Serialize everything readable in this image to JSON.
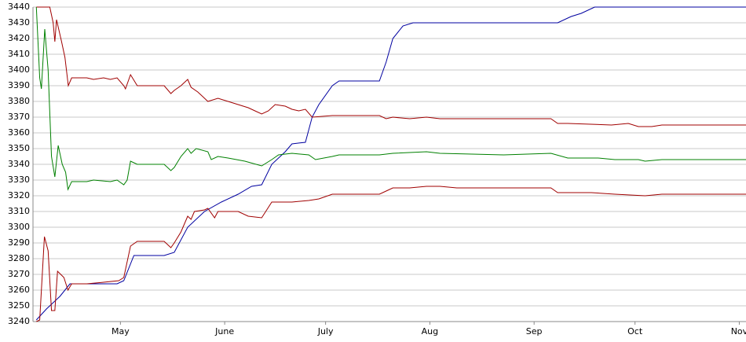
{
  "chart_data": {
    "type": "line",
    "xlim": [
      95,
      307
    ],
    "xticks": [
      {
        "value": 121,
        "label": "May"
      },
      {
        "value": 152,
        "label": "June"
      },
      {
        "value": 182,
        "label": "July"
      },
      {
        "value": 213,
        "label": "Aug"
      },
      {
        "value": 244,
        "label": "Sep"
      },
      {
        "value": 274,
        "label": "Oct"
      },
      {
        "value": 305,
        "label": "Nov"
      }
    ],
    "ylim": [
      3240,
      3440
    ],
    "yticks": [
      3240,
      3250,
      3260,
      3270,
      3280,
      3290,
      3300,
      3310,
      3320,
      3330,
      3340,
      3350,
      3360,
      3370,
      3380,
      3390,
      3400,
      3410,
      3420,
      3430,
      3440
    ],
    "grid": true,
    "series": [
      {
        "color": "#0000a0",
        "x": [
          96,
          99,
          103,
          106,
          120,
          122,
          125,
          134,
          137,
          141,
          146,
          151,
          156,
          160,
          163,
          166,
          170,
          172,
          176,
          178,
          180,
          184,
          186,
          198,
          200,
          202,
          205,
          208,
          251,
          255,
          258,
          262,
          307
        ],
        "values": [
          3241,
          3248,
          3256,
          3264,
          3264,
          3266,
          3282,
          3282,
          3284,
          3300,
          3310,
          3316,
          3321,
          3326,
          3327,
          3340,
          3348,
          3353,
          3354,
          3370,
          3378,
          3390,
          3393,
          3393,
          3405,
          3420,
          3428,
          3430,
          3430,
          3434,
          3436,
          3440,
          3440
        ]
      },
      {
        "color": "#a00000",
        "x": [
          96,
          100,
          101,
          101.5,
          102,
          103.5,
          104.5,
          105.5,
          106.5,
          111,
          113,
          116,
          118,
          120,
          122,
          122.5,
          124,
          126,
          134,
          136,
          137,
          139,
          141,
          142,
          144,
          147,
          150,
          153,
          156,
          159,
          161,
          163,
          165,
          167,
          170,
          172,
          174,
          176,
          178,
          184,
          198,
          200,
          202,
          207,
          212,
          216,
          228,
          244,
          249,
          251,
          254,
          267,
          272,
          275,
          279,
          282,
          307
        ],
        "values": [
          3440,
          3440,
          3430,
          3418,
          3432,
          3418,
          3408,
          3390,
          3395,
          3395,
          3394,
          3395,
          3394,
          3395,
          3390,
          3388,
          3397,
          3390,
          3390,
          3385,
          3387,
          3390,
          3394,
          3389,
          3386,
          3380,
          3382,
          3380,
          3378,
          3376,
          3374,
          3372,
          3374,
          3378,
          3377,
          3375,
          3374,
          3375,
          3370,
          3371,
          3371,
          3369,
          3370,
          3369,
          3370,
          3369,
          3369,
          3369,
          3369,
          3366,
          3366,
          3365,
          3366,
          3364,
          3364,
          3365,
          3365
        ]
      },
      {
        "color": "#008000",
        "x": [
          96,
          97,
          97.5,
          98.5,
          99.5,
          100.5,
          101.5,
          102.5,
          103.7,
          104.7,
          105.4,
          106.5,
          111,
          113,
          118,
          120,
          122,
          123,
          124,
          126,
          134,
          136,
          137,
          139,
          141,
          142,
          143.5,
          147,
          148,
          150,
          153,
          158,
          163,
          166,
          168,
          172,
          177,
          179,
          184,
          186,
          198,
          202,
          212,
          216,
          235,
          249,
          254,
          263,
          268,
          275,
          277,
          282,
          307
        ],
        "values": [
          3440,
          3395,
          3388,
          3426,
          3400,
          3345,
          3332,
          3352,
          3340,
          3335,
          3324,
          3329,
          3329,
          3330,
          3329,
          3330,
          3327,
          3330,
          3342,
          3340,
          3340,
          3336,
          3338,
          3345,
          3350,
          3347,
          3350,
          3348,
          3343,
          3345,
          3344,
          3342,
          3339,
          3343,
          3346,
          3347,
          3346,
          3343,
          3345,
          3346,
          3346,
          3347,
          3348,
          3347,
          3346,
          3347,
          3344,
          3344,
          3343,
          3343,
          3342,
          3343,
          3343
        ]
      },
      {
        "color": "#a00000",
        "x": [
          96,
          97,
          98.4,
          99.5,
          100.5,
          101.5,
          102.3,
          104.2,
          105.4,
          106.5,
          111,
          116,
          120.5,
          122,
          124,
          126,
          134,
          136,
          137,
          139,
          141,
          142,
          143,
          146,
          147,
          149,
          150,
          156,
          159,
          163,
          166,
          172,
          177,
          180,
          184,
          198,
          200,
          202,
          207,
          212,
          216,
          221,
          235,
          249,
          251,
          261,
          268,
          277,
          282,
          307
        ],
        "values": [
          3240,
          3241,
          3294,
          3285,
          3247,
          3247,
          3272,
          3268,
          3260,
          3264,
          3264,
          3265,
          3266,
          3268,
          3288,
          3291,
          3291,
          3287,
          3290,
          3297,
          3307,
          3305,
          3310,
          3311,
          3312,
          3306,
          3310,
          3310,
          3307,
          3306,
          3316,
          3316,
          3317,
          3318,
          3321,
          3321,
          3323,
          3325,
          3325,
          3326,
          3326,
          3325,
          3325,
          3325,
          3322,
          3322,
          3321,
          3320,
          3321,
          3321
        ]
      }
    ]
  }
}
